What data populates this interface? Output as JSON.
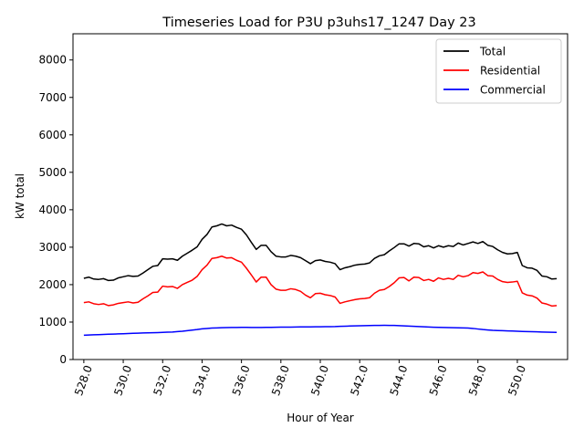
{
  "chart_data": {
    "type": "line",
    "title": "Timeseries Load for P3U p3uhs17_1247  Day 23",
    "xlabel": "Hour of Year",
    "ylabel": "kW total",
    "xlim": [
      527.45,
      552.55
    ],
    "ylim": [
      0,
      8700
    ],
    "x_ticks": [
      528,
      530,
      532,
      534,
      536,
      538,
      540,
      542,
      544,
      546,
      548,
      550
    ],
    "x_tick_labels": [
      "528.0",
      "530.0",
      "532.0",
      "534.0",
      "536.0",
      "538.0",
      "540.0",
      "542.0",
      "544.0",
      "546.0",
      "548.0",
      "550.0"
    ],
    "y_ticks": [
      0,
      1000,
      2000,
      3000,
      4000,
      5000,
      6000,
      7000,
      8000
    ],
    "y_tick_labels": [
      "0",
      "1000",
      "2000",
      "3000",
      "4000",
      "5000",
      "6000",
      "7000",
      "8000"
    ],
    "grid": false,
    "legend_position": "upper right",
    "x_start": 528.0,
    "x_step": 0.25,
    "series": [
      {
        "name": "Total",
        "color": "#000000",
        "values": [
          2170,
          2200,
          2150,
          2140,
          2160,
          2110,
          2120,
          2180,
          2210,
          2240,
          2220,
          2230,
          2310,
          2400,
          2490,
          2510,
          2690,
          2680,
          2690,
          2650,
          2760,
          2840,
          2920,
          3010,
          3210,
          3340,
          3540,
          3570,
          3620,
          3570,
          3590,
          3530,
          3480,
          3330,
          3130,
          2940,
          3050,
          3050,
          2880,
          2760,
          2740,
          2740,
          2780,
          2760,
          2720,
          2640,
          2560,
          2640,
          2660,
          2620,
          2600,
          2560,
          2400,
          2450,
          2480,
          2520,
          2540,
          2550,
          2580,
          2700,
          2770,
          2800,
          2900,
          2990,
          3090,
          3090,
          3030,
          3100,
          3090,
          3010,
          3040,
          2980,
          3040,
          3000,
          3040,
          3020,
          3110,
          3060,
          3100,
          3140,
          3100,
          3150,
          3050,
          3020,
          2930,
          2860,
          2820,
          2830,
          2860,
          2510,
          2450,
          2440,
          2380,
          2230,
          2210,
          2150,
          2160
        ]
      },
      {
        "name": "Residential",
        "color": "#ff0000",
        "values": [
          1520,
          1540,
          1490,
          1470,
          1490,
          1440,
          1460,
          1500,
          1520,
          1540,
          1510,
          1530,
          1620,
          1700,
          1790,
          1800,
          1960,
          1940,
          1950,
          1900,
          2000,
          2060,
          2120,
          2220,
          2400,
          2520,
          2700,
          2720,
          2760,
          2710,
          2720,
          2650,
          2600,
          2440,
          2260,
          2070,
          2200,
          2200,
          2000,
          1880,
          1850,
          1850,
          1890,
          1870,
          1820,
          1720,
          1650,
          1760,
          1770,
          1730,
          1710,
          1670,
          1500,
          1540,
          1570,
          1600,
          1620,
          1630,
          1650,
          1770,
          1850,
          1870,
          1950,
          2050,
          2180,
          2190,
          2100,
          2200,
          2190,
          2110,
          2140,
          2090,
          2180,
          2140,
          2170,
          2140,
          2250,
          2210,
          2240,
          2320,
          2300,
          2340,
          2240,
          2230,
          2140,
          2080,
          2060,
          2070,
          2090,
          1780,
          1720,
          1700,
          1640,
          1510,
          1480,
          1430,
          1440
        ]
      },
      {
        "name": "Commercial",
        "color": "#0000ff",
        "values": [
          650,
          655,
          660,
          665,
          670,
          675,
          680,
          685,
          690,
          695,
          700,
          705,
          710,
          712,
          715,
          720,
          725,
          730,
          735,
          745,
          755,
          770,
          785,
          800,
          820,
          830,
          840,
          845,
          850,
          852,
          855,
          857,
          858,
          858,
          856,
          855,
          856,
          858,
          860,
          862,
          864,
          865,
          866,
          868,
          870,
          871,
          872,
          873,
          874,
          876,
          878,
          880,
          885,
          890,
          895,
          900,
          903,
          905,
          908,
          910,
          912,
          913,
          912,
          910,
          905,
          898,
          892,
          885,
          880,
          875,
          868,
          862,
          858,
          855,
          852,
          850,
          848,
          845,
          840,
          830,
          815,
          800,
          790,
          780,
          775,
          770,
          765,
          760,
          755,
          750,
          745,
          742,
          740,
          735,
          730,
          728,
          725
        ]
      }
    ]
  }
}
